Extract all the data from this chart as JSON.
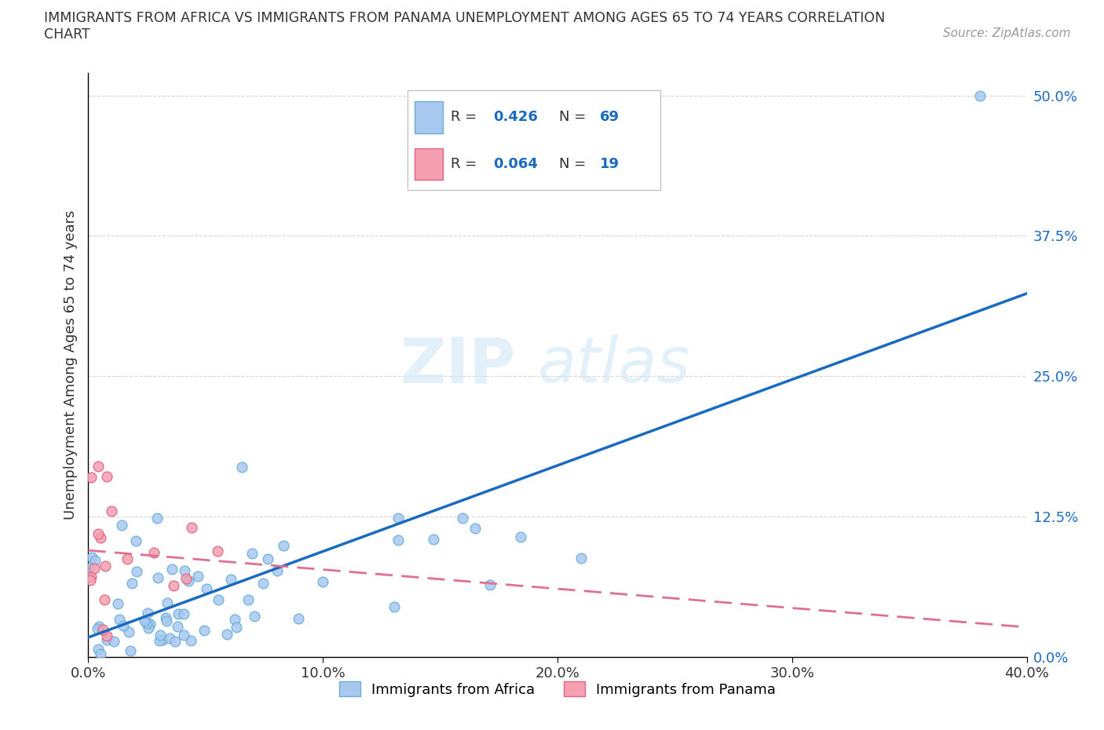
{
  "title_line1": "IMMIGRANTS FROM AFRICA VS IMMIGRANTS FROM PANAMA UNEMPLOYMENT AMONG AGES 65 TO 74 YEARS CORRELATION",
  "title_line2": "CHART",
  "source": "Source: ZipAtlas.com",
  "ylabel": "Unemployment Among Ages 65 to 74 years",
  "watermark_zip": "ZIP",
  "watermark_atlas": "atlas",
  "africa_color": "#a8c8f0",
  "africa_edge": "#6aaed6",
  "panama_color": "#f4a0b0",
  "panama_edge": "#e06080",
  "africa_line_color": "#1a6bbf",
  "panama_line_color": "#e07090",
  "r_africa": 0.426,
  "n_africa": 69,
  "r_panama": 0.064,
  "n_panama": 19,
  "xlim": [
    0.0,
    0.4
  ],
  "ylim": [
    0.0,
    0.52
  ],
  "yticks": [
    0.0,
    0.125,
    0.25,
    0.375,
    0.5
  ],
  "ytick_labels": [
    "0.0%",
    "12.5%",
    "25.0%",
    "37.5%",
    "50.0%"
  ],
  "xticks": [
    0.0,
    0.1,
    0.2,
    0.3,
    0.4
  ],
  "xtick_labels": [
    "0.0%",
    "10.0%",
    "20.0%",
    "30.0%",
    "40.0%"
  ],
  "background_color": "#ffffff",
  "grid_color": "#cccccc",
  "text_color": "#333333",
  "blue_color": "#1a6bbf",
  "legend_label_africa": "Immigrants from Africa",
  "legend_label_panama": "Immigrants from Panama"
}
